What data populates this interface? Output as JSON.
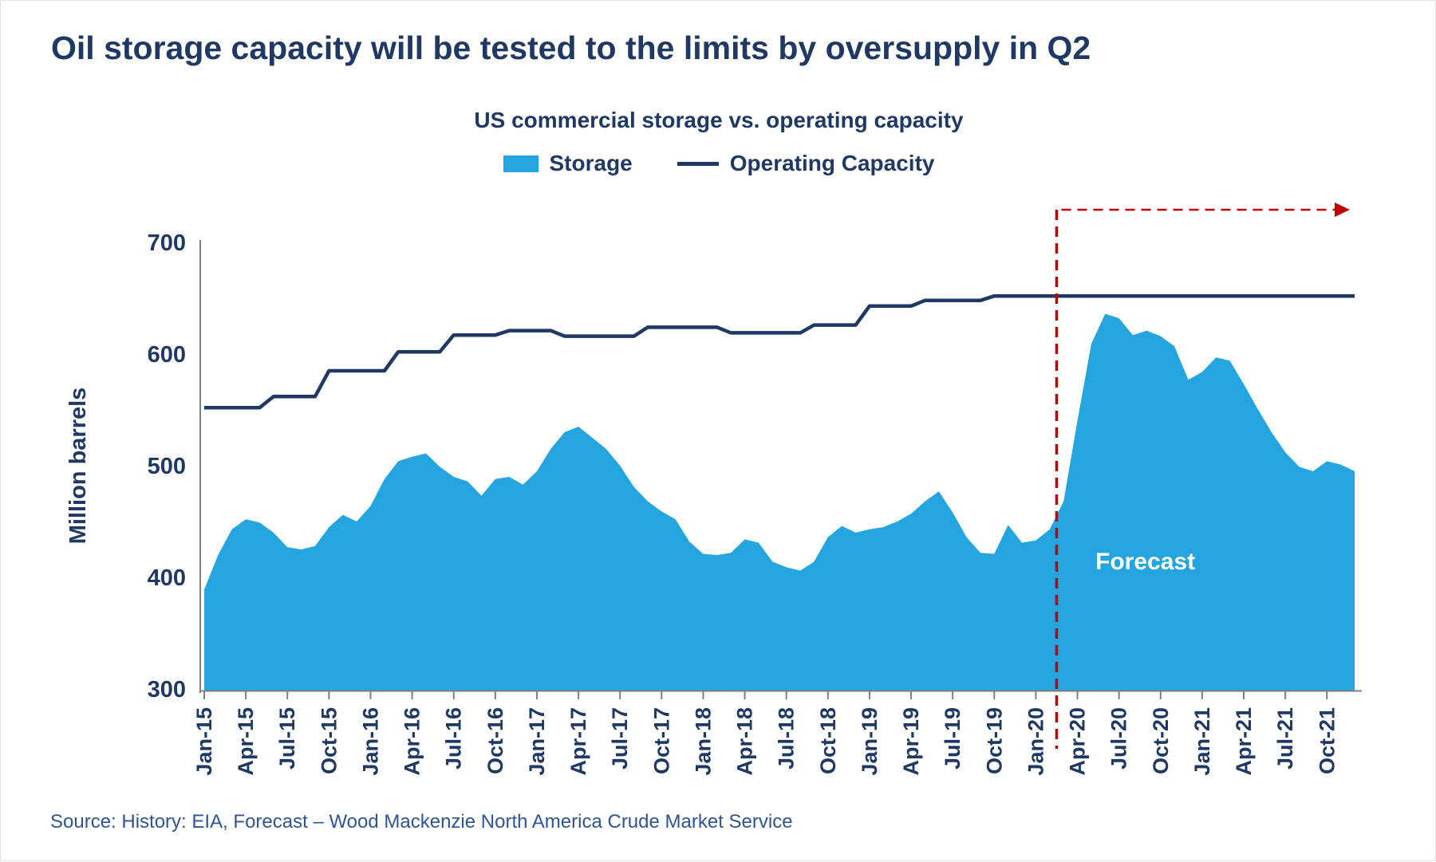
{
  "title": "Oil storage capacity will be tested to the limits by oversupply in Q2",
  "source": "Source: History: EIA, Forecast – Wood Mackenzie North America Crude Market Service",
  "colors": {
    "navy": "#1F3864",
    "storage_blue": "#24A5DF",
    "forecast_red": "#C00000",
    "axis_gray": "#7F7F7F",
    "source_blue": "#2F5496",
    "forecast_text": "#FFFFFF"
  },
  "chart_data": {
    "type": "area",
    "title": "US commercial storage vs. operating capacity",
    "xlabel": "",
    "ylabel": "Million barrels",
    "ylim": [
      300,
      700
    ],
    "yticks": [
      300,
      400,
      500,
      600,
      700
    ],
    "grid": false,
    "legend_position": "top",
    "tick_every_months": 3,
    "tick_labels": [
      "Jan-15",
      "Apr-15",
      "Jul-15",
      "Oct-15",
      "Jan-16",
      "Apr-16",
      "Jul-16",
      "Oct-16",
      "Jan-17",
      "Apr-17",
      "Jul-17",
      "Oct-17",
      "Jan-18",
      "Apr-18",
      "Jul-18",
      "Oct-18",
      "Jan-19",
      "Apr-19",
      "Jul-19",
      "Oct-19",
      "Jan-20",
      "Apr-20",
      "Jul-20",
      "Oct-20",
      "Jan-21",
      "Apr-21",
      "Jul-21",
      "Oct-21"
    ],
    "x_start": "Jan-15",
    "x_end": "Dec-21",
    "series": [
      {
        "name": "Storage",
        "type": "area",
        "color": "#24A5DF",
        "values": [
          389,
          420,
          443,
          452,
          449,
          440,
          427,
          425,
          428,
          445,
          456,
          450,
          464,
          488,
          504,
          508,
          511,
          499,
          490,
          486,
          473,
          488,
          490,
          483,
          495,
          515,
          530,
          535,
          525,
          515,
          500,
          481,
          468,
          459,
          452,
          432,
          421,
          420,
          422,
          434,
          431,
          414,
          409,
          406,
          414,
          436,
          446,
          440,
          443,
          445,
          450,
          457,
          468,
          477,
          458,
          436,
          422,
          421,
          447,
          431,
          433,
          443,
          468,
          540,
          609,
          636,
          632,
          617,
          621,
          616,
          607,
          577,
          584,
          597,
          594,
          573,
          551,
          530,
          512,
          499,
          495,
          504,
          501,
          495
        ]
      },
      {
        "name": "Operating Capacity",
        "type": "line",
        "color": "#1F3864",
        "values": [
          552,
          552,
          552,
          552,
          552,
          562,
          562,
          562,
          562,
          585,
          585,
          585,
          585,
          585,
          602,
          602,
          602,
          602,
          617,
          617,
          617,
          617,
          621,
          621,
          621,
          621,
          616,
          616,
          616,
          616,
          616,
          616,
          624,
          624,
          624,
          624,
          624,
          624,
          619,
          619,
          619,
          619,
          619,
          619,
          626,
          626,
          626,
          626,
          643,
          643,
          643,
          643,
          648,
          648,
          648,
          648,
          648,
          652,
          652,
          652,
          652,
          652,
          652,
          652,
          652,
          652,
          652,
          652,
          652,
          652,
          652,
          652,
          652,
          652,
          652,
          652,
          652,
          652,
          652,
          652,
          652,
          652,
          652,
          652
        ]
      }
    ],
    "forecast": {
      "label": "Forecast",
      "start_label": "Mar-20",
      "boundary_month_index": 61.5
    }
  }
}
